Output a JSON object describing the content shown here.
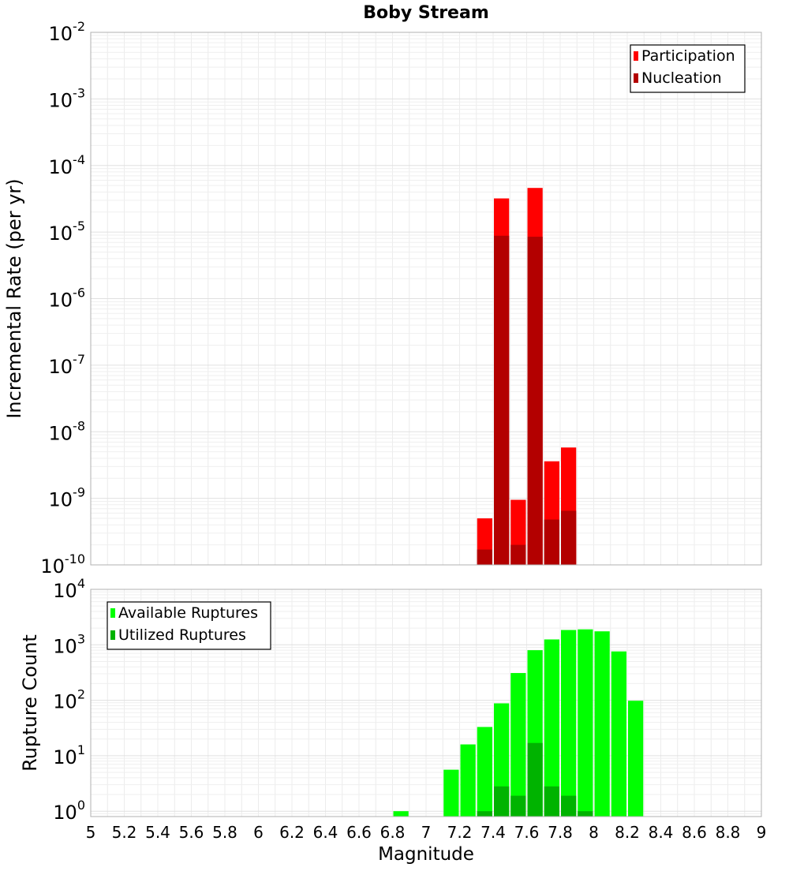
{
  "chart_data": [
    {
      "type": "bar",
      "title": "Boby Stream",
      "ylabel": "Incremental Rate (per yr)",
      "xlabel": "",
      "y_scale": "log",
      "ylim": [
        1e-10,
        0.01
      ],
      "xlim": [
        5,
        9
      ],
      "bin_width": 0.1,
      "y_tick_exponents": [
        "-10",
        "-9",
        "-8",
        "-7",
        "-6",
        "-5",
        "-4",
        "-3",
        "-2"
      ],
      "legend": {
        "placement": "top-right",
        "entries": [
          {
            "name": "Participation",
            "color": "#ff0000"
          },
          {
            "name": "Nucleation",
            "color": "#b30000"
          }
        ]
      },
      "series": [
        {
          "name": "Participation",
          "color": "#ff0000",
          "x": [
            7.35,
            7.45,
            7.55,
            7.65,
            7.75,
            7.85
          ],
          "values": [
            5e-10,
            3.2e-05,
            9.5e-10,
            4.6e-05,
            3.6e-09,
            5.8e-09
          ]
        },
        {
          "name": "Nucleation",
          "color": "#b30000",
          "x": [
            7.35,
            7.45,
            7.55,
            7.65,
            7.75,
            7.85
          ],
          "values": [
            1.7e-10,
            8.8e-06,
            2e-10,
            8.5e-06,
            4.8e-10,
            6.5e-10
          ]
        }
      ]
    },
    {
      "type": "bar",
      "title": "",
      "ylabel": "Rupture Count",
      "xlabel": "Magnitude",
      "y_scale": "log",
      "ylim": [
        0.8,
        10000
      ],
      "xlim": [
        5,
        9
      ],
      "bin_width": 0.1,
      "y_tick_exponents": [
        "0",
        "1",
        "2",
        "3",
        "4"
      ],
      "x_ticks": [
        "5",
        "5.2",
        "5.4",
        "5.6",
        "5.8",
        "6",
        "6.2",
        "6.4",
        "6.6",
        "6.8",
        "7",
        "7.2",
        "7.4",
        "7.6",
        "7.8",
        "8",
        "8.2",
        "8.4",
        "8.6",
        "8.8",
        "9"
      ],
      "legend": {
        "placement": "top-left",
        "entries": [
          {
            "name": "Available Ruptures",
            "color": "#00ff00"
          },
          {
            "name": "Utilized Ruptures",
            "color": "#00b300"
          }
        ]
      },
      "series": [
        {
          "name": "Available Ruptures",
          "color": "#00ff00",
          "x": [
            6.85,
            7.15,
            7.25,
            7.35,
            7.45,
            7.55,
            7.65,
            7.75,
            7.85,
            7.95,
            8.05,
            8.15,
            8.25
          ],
          "values": [
            1,
            5.6,
            16,
            33,
            88,
            310,
            800,
            1250,
            1850,
            1900,
            1750,
            760,
            98
          ]
        },
        {
          "name": "Utilized Ruptures",
          "color": "#00b300",
          "x": [
            7.35,
            7.45,
            7.55,
            7.65,
            7.75,
            7.85,
            7.95
          ],
          "values": [
            1,
            2.8,
            1.9,
            17,
            2.8,
            1.9,
            1
          ]
        }
      ]
    }
  ]
}
